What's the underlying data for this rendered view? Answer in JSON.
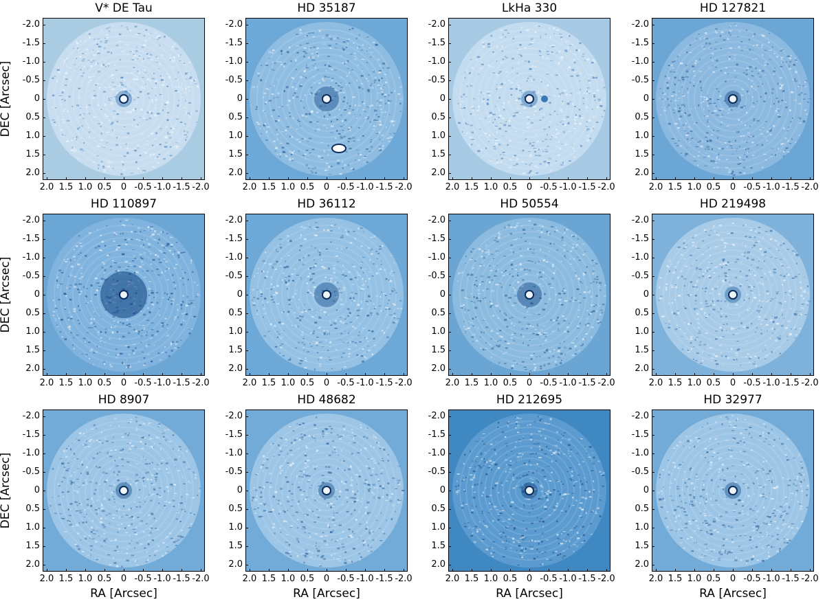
{
  "figure": {
    "y_axis_label": "DEC [Arcsec]",
    "x_axis_label": "RA [Arcsec]",
    "y_ticks": [
      "-2.0",
      "-1.5",
      "-1.0",
      "-0.5",
      "0",
      "0.5",
      "1.0",
      "1.5",
      "2.0"
    ],
    "x_ticks": [
      "2.0",
      "1.5",
      "1.0",
      "0.5",
      "0",
      "-0.5",
      "-1.0",
      "-1.5",
      "-2.0"
    ],
    "colormap": "blues",
    "panels": [
      {
        "title": "V* DE Tau",
        "bg": "#a9cce2",
        "field": "#c8def0",
        "dark": "#3a78b4"
      },
      {
        "title": "HD 35187",
        "bg": "#6ea8d6",
        "field": "#8fbde2",
        "dark": "#1c4f8c"
      },
      {
        "title": "LkHa 330",
        "bg": "#a6cae4",
        "field": "#c4dcef",
        "dark": "#3572b0"
      },
      {
        "title": "HD 127821",
        "bg": "#6ca6d4",
        "field": "#8cb9df",
        "dark": "#1c4f8c"
      },
      {
        "title": "HD 110897",
        "bg": "#6ca6d4",
        "field": "#80b3de",
        "dark": "#0d3f7e"
      },
      {
        "title": "HD 36112",
        "bg": "#6ea8d6",
        "field": "#94c1e4",
        "dark": "#1f558f"
      },
      {
        "title": "HD 50554",
        "bg": "#6aa5d4",
        "field": "#8cbbe0",
        "dark": "#174b88"
      },
      {
        "title": "HD 219498",
        "bg": "#7fb2da",
        "field": "#a8cbe8",
        "dark": "#2b67a4"
      },
      {
        "title": "HD 8907",
        "bg": "#72abd7",
        "field": "#9cc5e6",
        "dark": "#1f558f"
      },
      {
        "title": "HD 48682",
        "bg": "#72abd7",
        "field": "#9cc5e6",
        "dark": "#1f558f"
      },
      {
        "title": "HD 212695",
        "bg": "#3f88c2",
        "field": "#5b9bd0",
        "dark": "#123f78"
      },
      {
        "title": "HD 32977",
        "bg": "#72abd7",
        "field": "#9cc5e6",
        "dark": "#1f558f"
      }
    ]
  }
}
